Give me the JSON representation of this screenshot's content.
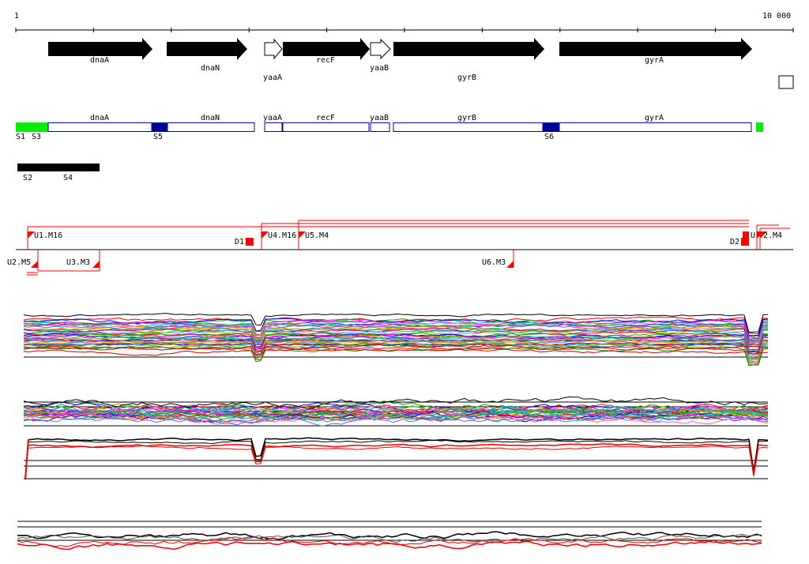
{
  "ruler": {
    "start_label": "1",
    "end_label": "10 000"
  },
  "genes": [
    {
      "name": "dnaA",
      "filled": true
    },
    {
      "name": "dnaN",
      "filled": true
    },
    {
      "name": "yaaA",
      "filled": false
    },
    {
      "name": "recF",
      "filled": true
    },
    {
      "name": "yaaB",
      "filled": false
    },
    {
      "name": "gyrB",
      "filled": true
    },
    {
      "name": "gyrA",
      "filled": true
    }
  ],
  "segment_labels": [
    "S1",
    "S3",
    "S5",
    "S6",
    "S2",
    "S4"
  ],
  "markers": [
    "U1.M16",
    "D1",
    "U4.M16",
    "U5.M4",
    "D2",
    "U",
    "2.M4",
    "U2.M5",
    "U3.M3",
    "U6.M3"
  ],
  "colors": {
    "gene_arrow": "#000000",
    "segment_green": "#00ee00",
    "segment_blue": "#000099",
    "outline_blue": "#0000aa",
    "marker_red": "#ff0000"
  }
}
